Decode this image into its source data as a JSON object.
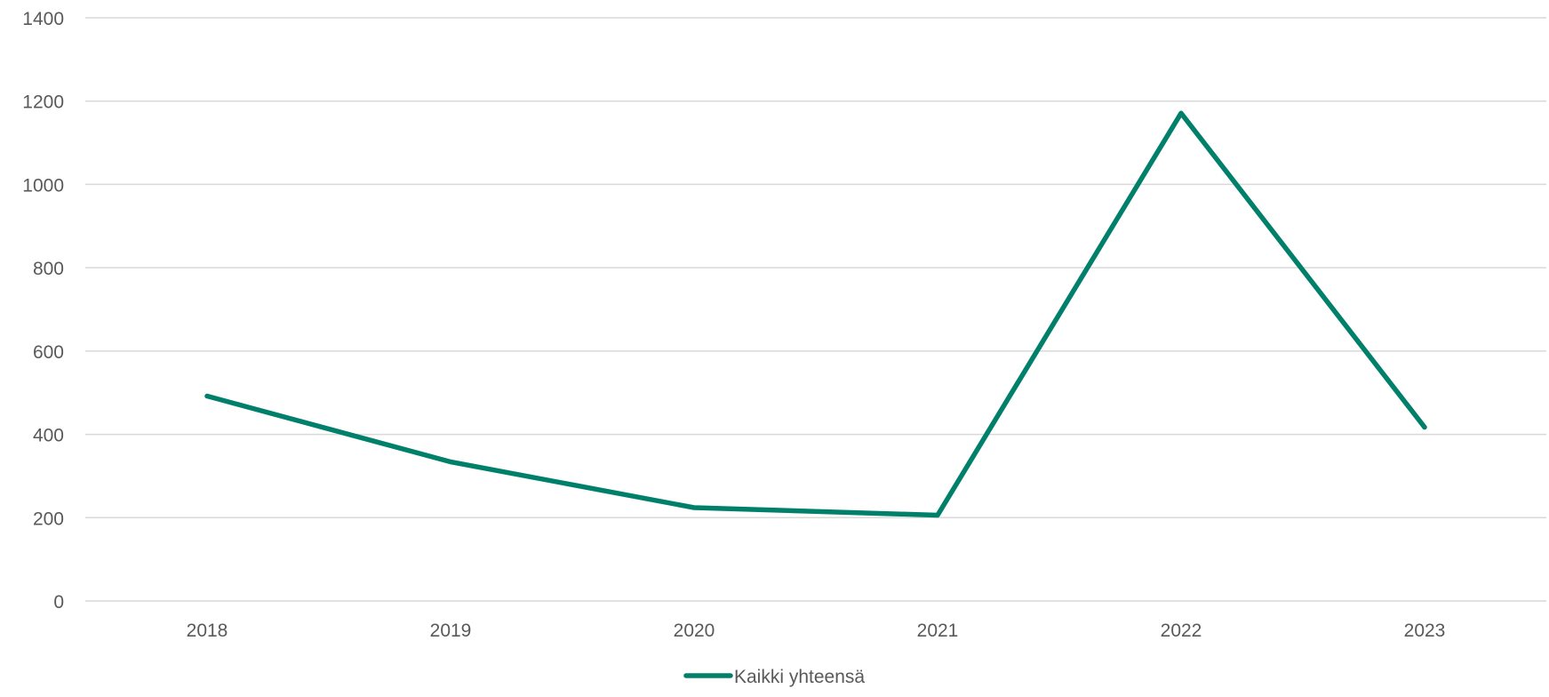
{
  "chart_data": {
    "type": "line",
    "categories": [
      "2018",
      "2019",
      "2020",
      "2021",
      "2022",
      "2023"
    ],
    "series": [
      {
        "name": "Kaikki yhteensä",
        "values": [
          492,
          334,
          224,
          206,
          1171,
          417
        ],
        "color": "#00806A"
      }
    ],
    "y_ticks": [
      "0",
      "200",
      "400",
      "600",
      "800",
      "1000",
      "1200",
      "1400"
    ],
    "ylim": [
      0,
      1400
    ],
    "grid": true,
    "legend": "bottom-center",
    "colors": {
      "grid": "#D9D9D9",
      "tick_text": "#595959"
    }
  }
}
